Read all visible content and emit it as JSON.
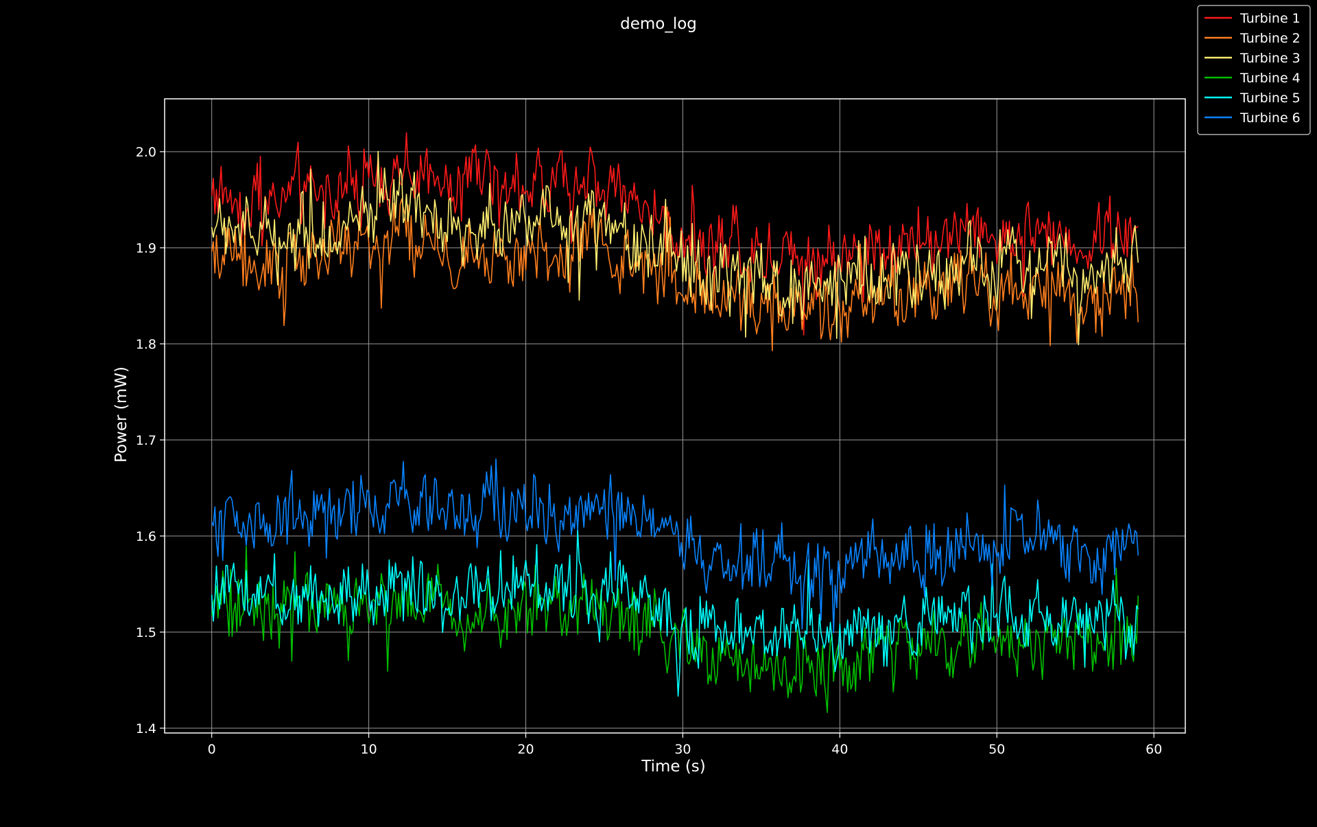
{
  "chart_data": {
    "type": "line",
    "title": "demo_log",
    "xlabel": "Time (s)",
    "ylabel": "Power (mW)",
    "xlim": [
      -3,
      62
    ],
    "ylim": [
      1.395,
      2.055
    ],
    "xticks": [
      0,
      10,
      20,
      30,
      40,
      50,
      60
    ],
    "xtick_labels": [
      "0",
      "10",
      "20",
      "30",
      "40",
      "50",
      "60"
    ],
    "yticks": [
      1.4,
      1.5,
      1.6,
      1.7,
      1.8,
      1.9,
      2.0
    ],
    "ytick_labels": [
      "1.4",
      "1.5",
      "1.6",
      "1.7",
      "1.8",
      "1.9",
      "2.0"
    ],
    "grid": true,
    "legend_position": "top-right",
    "background": "#000000",
    "foreground": "#ffffff",
    "noise_amplitude_mW": 0.028,
    "x_step_s": 0.1,
    "series": [
      {
        "name": "Turbine 1",
        "color": "#ff1a1a",
        "x": [
          0,
          2,
          4,
          6,
          8,
          10,
          12,
          14,
          16,
          18,
          20,
          22,
          24,
          26,
          28,
          30,
          32,
          34,
          36,
          38,
          40,
          42,
          44,
          46,
          48,
          50,
          52,
          54,
          56,
          58,
          59
        ],
        "y": [
          1.96,
          1.95,
          1.955,
          1.96,
          1.955,
          1.97,
          1.98,
          1.975,
          1.965,
          1.97,
          1.97,
          1.965,
          1.97,
          1.955,
          1.94,
          1.915,
          1.905,
          1.895,
          1.895,
          1.895,
          1.885,
          1.905,
          1.905,
          1.905,
          1.915,
          1.92,
          1.915,
          1.915,
          1.905,
          1.915,
          1.915
        ]
      },
      {
        "name": "Turbine 2",
        "color": "#ff7f1e",
        "x": [
          0,
          2,
          4,
          6,
          8,
          10,
          12,
          14,
          16,
          18,
          20,
          22,
          24,
          26,
          28,
          30,
          32,
          34,
          36,
          38,
          40,
          42,
          44,
          46,
          48,
          50,
          52,
          54,
          56,
          58,
          59
        ],
        "y": [
          1.895,
          1.885,
          1.885,
          1.89,
          1.89,
          1.9,
          1.905,
          1.9,
          1.885,
          1.89,
          1.895,
          1.895,
          1.9,
          1.89,
          1.875,
          1.855,
          1.85,
          1.845,
          1.84,
          1.84,
          1.83,
          1.845,
          1.855,
          1.85,
          1.855,
          1.86,
          1.855,
          1.855,
          1.85,
          1.855,
          1.86
        ]
      },
      {
        "name": "Turbine 3",
        "color": "#ffee70",
        "x": [
          0,
          2,
          4,
          6,
          8,
          10,
          12,
          14,
          16,
          18,
          20,
          22,
          24,
          26,
          28,
          30,
          32,
          34,
          36,
          38,
          40,
          42,
          44,
          46,
          48,
          50,
          52,
          54,
          56,
          58,
          59
        ],
        "y": [
          1.925,
          1.915,
          1.915,
          1.92,
          1.915,
          1.93,
          1.94,
          1.935,
          1.92,
          1.92,
          1.925,
          1.925,
          1.93,
          1.915,
          1.9,
          1.88,
          1.875,
          1.87,
          1.865,
          1.865,
          1.86,
          1.875,
          1.875,
          1.875,
          1.885,
          1.89,
          1.885,
          1.885,
          1.875,
          1.885,
          1.885
        ]
      },
      {
        "name": "Turbine 4",
        "color": "#00c000",
        "x": [
          0,
          2,
          4,
          6,
          8,
          10,
          12,
          14,
          16,
          18,
          20,
          22,
          24,
          26,
          28,
          30,
          32,
          34,
          36,
          38,
          40,
          42,
          44,
          46,
          48,
          50,
          52,
          54,
          56,
          58,
          59
        ],
        "y": [
          1.525,
          1.52,
          1.52,
          1.525,
          1.52,
          1.53,
          1.535,
          1.53,
          1.52,
          1.52,
          1.525,
          1.525,
          1.525,
          1.52,
          1.505,
          1.485,
          1.475,
          1.47,
          1.465,
          1.47,
          1.47,
          1.48,
          1.485,
          1.485,
          1.49,
          1.495,
          1.49,
          1.49,
          1.485,
          1.49,
          1.49
        ]
      },
      {
        "name": "Turbine 5",
        "color": "#00ffff",
        "x": [
          0,
          2,
          4,
          6,
          8,
          10,
          12,
          14,
          16,
          18,
          20,
          22,
          24,
          26,
          28,
          30,
          32,
          34,
          36,
          38,
          40,
          42,
          44,
          46,
          48,
          50,
          52,
          54,
          56,
          58,
          59
        ],
        "y": [
          1.54,
          1.54,
          1.535,
          1.54,
          1.54,
          1.545,
          1.555,
          1.55,
          1.54,
          1.54,
          1.545,
          1.545,
          1.545,
          1.54,
          1.525,
          1.505,
          1.505,
          1.5,
          1.5,
          1.5,
          1.495,
          1.505,
          1.51,
          1.51,
          1.515,
          1.515,
          1.515,
          1.515,
          1.51,
          1.515,
          1.515
        ]
      },
      {
        "name": "Turbine 6",
        "color": "#0a84ff",
        "x": [
          0,
          2,
          4,
          6,
          8,
          10,
          12,
          14,
          16,
          18,
          20,
          22,
          24,
          26,
          28,
          30,
          32,
          34,
          36,
          38,
          40,
          42,
          44,
          46,
          48,
          50,
          52,
          54,
          56,
          58,
          59
        ],
        "y": [
          1.62,
          1.62,
          1.62,
          1.625,
          1.62,
          1.63,
          1.64,
          1.635,
          1.625,
          1.625,
          1.63,
          1.63,
          1.63,
          1.625,
          1.61,
          1.59,
          1.58,
          1.575,
          1.57,
          1.57,
          1.57,
          1.575,
          1.58,
          1.585,
          1.59,
          1.595,
          1.59,
          1.59,
          1.585,
          1.59,
          1.59
        ]
      }
    ]
  }
}
